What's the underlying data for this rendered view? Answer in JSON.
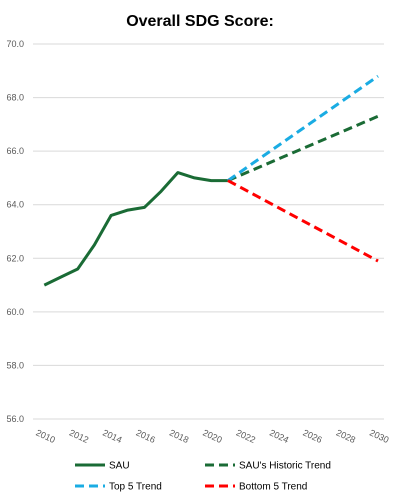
{
  "chart_data": {
    "type": "line",
    "title": "Overall SDG Score:",
    "xlabel": "",
    "ylabel": "",
    "xlim": [
      2009.5,
      2030
    ],
    "ylim": [
      56.0,
      70.0
    ],
    "yticks": [
      56.0,
      58.0,
      60.0,
      62.0,
      64.0,
      66.0,
      68.0,
      70.0
    ],
    "ytick_labels": [
      "56.0",
      "58.0",
      "60.0",
      "62.0",
      "64.0",
      "66.0",
      "68.0",
      "70.0"
    ],
    "xticks": [
      2010,
      2012,
      2014,
      2016,
      2018,
      2020,
      2022,
      2024,
      2026,
      2028,
      2030
    ],
    "xtick_labels": [
      "2010",
      "2012",
      "2014",
      "2016",
      "2018",
      "2020",
      "2022",
      "2024",
      "2026",
      "2028",
      "2030"
    ],
    "grid": "horizontal",
    "legend_position": "bottom",
    "series": [
      {
        "name": "SAU",
        "color": "#1a6b35",
        "dash": "solid",
        "x": [
          2010,
          2011,
          2012,
          2013,
          2014,
          2015,
          2016,
          2017,
          2018,
          2019,
          2020,
          2021
        ],
        "y": [
          61.0,
          61.3,
          61.6,
          62.5,
          63.6,
          63.8,
          63.9,
          64.5,
          65.2,
          65.0,
          64.9,
          64.9
        ]
      },
      {
        "name": "SAU's Historic Trend",
        "color": "#1a6b35",
        "dash": "dashed",
        "x": [
          2021,
          2030
        ],
        "y": [
          64.9,
          67.3
        ]
      },
      {
        "name": "Top 5 Trend",
        "color": "#1aace3",
        "dash": "dashed",
        "x": [
          2021,
          2030
        ],
        "y": [
          64.9,
          68.8
        ]
      },
      {
        "name": "Bottom 5 Trend",
        "color": "#ff0000",
        "dash": "dashed",
        "x": [
          2021,
          2030
        ],
        "y": [
          64.9,
          61.9
        ]
      }
    ]
  }
}
